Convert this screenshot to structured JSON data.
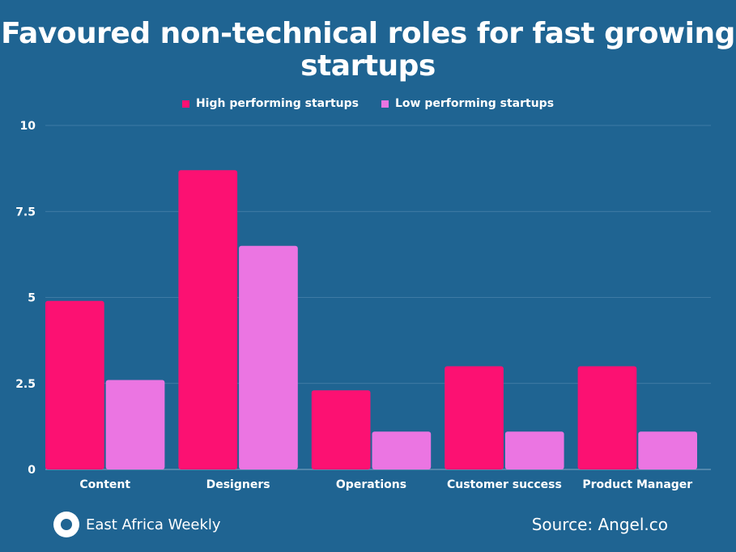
{
  "chart_data": {
    "type": "bar",
    "title": "Favoured non-technical roles for fast growing startups",
    "categories": [
      "Content",
      "Designers",
      "Operations",
      "Customer success",
      "Product Manager"
    ],
    "series": [
      {
        "name": "High performing startups",
        "color": "#fc1172",
        "values": [
          4.9,
          8.7,
          2.3,
          3.0,
          3.0
        ]
      },
      {
        "name": "Low performing startups",
        "color": "#eb75e2",
        "values": [
          2.6,
          6.5,
          1.1,
          1.1,
          1.1
        ]
      }
    ],
    "yticks": [
      "0",
      "2.5",
      "5",
      "7.5",
      "10"
    ],
    "ylim": [
      0,
      10
    ],
    "xlabel": "",
    "ylabel": "",
    "legend_position": "top-center",
    "grid": true
  },
  "footer": {
    "brand": "East Africa Weekly",
    "source": "Source: Angel.co"
  }
}
